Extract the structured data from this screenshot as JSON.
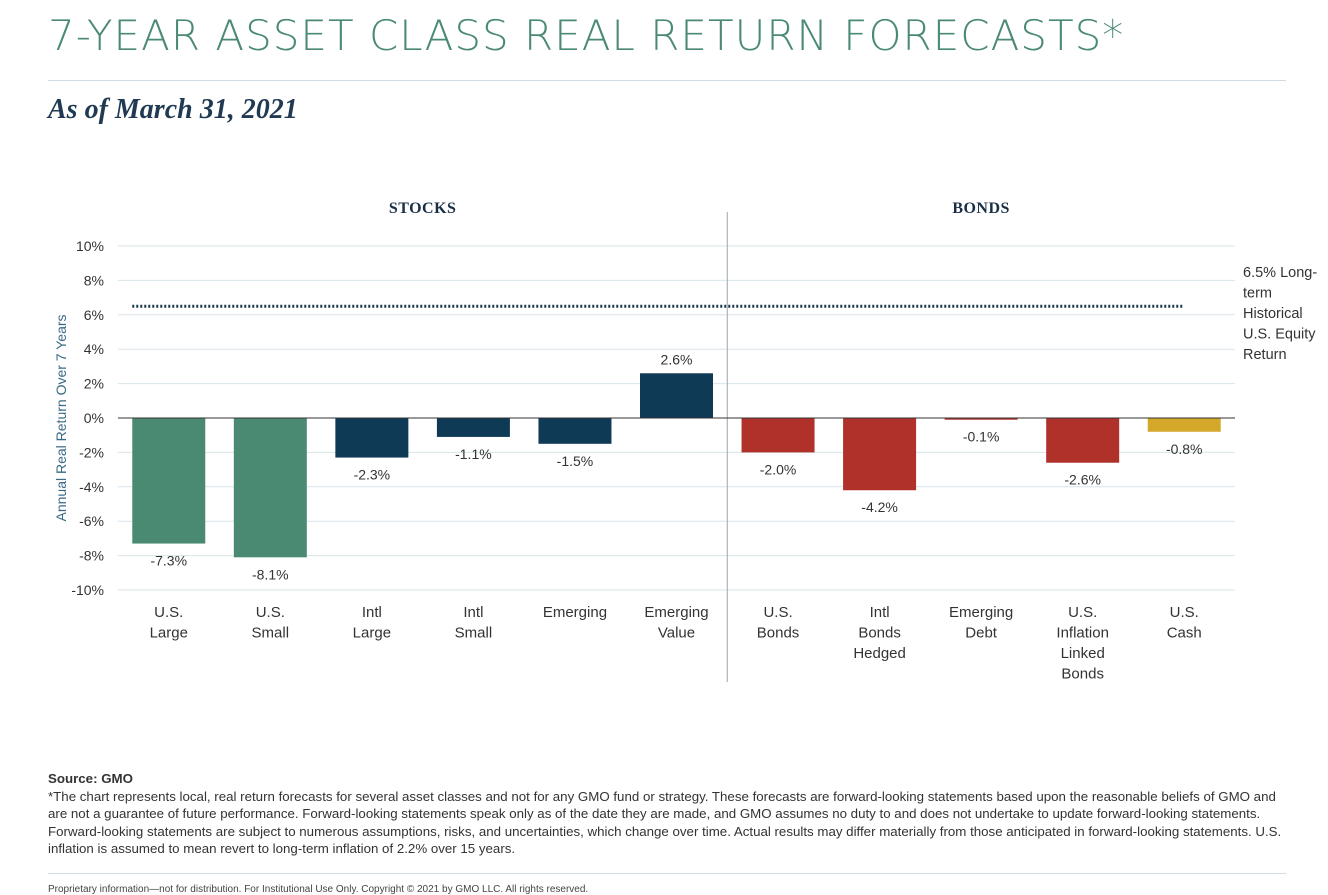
{
  "title": "7-YEAR ASSET CLASS REAL RETURN FORECASTS*",
  "subtitle": "As of March 31, 2021",
  "chart_data": {
    "type": "bar",
    "ylabel": "Annual Real Return Over 7 Years",
    "ylim": [
      -10,
      10
    ],
    "yticks": [
      10,
      8,
      6,
      4,
      2,
      0,
      -2,
      -4,
      -6,
      -8,
      -10
    ],
    "ytick_labels": [
      "10%",
      "8%",
      "6%",
      "4%",
      "2%",
      "0%",
      "-2%",
      "-4%",
      "-6%",
      "-8%",
      "-10%"
    ],
    "grid": true,
    "groups": [
      {
        "label": "STOCKS",
        "start": 0,
        "end": 5
      },
      {
        "label": "BONDS",
        "start": 6,
        "end": 10
      }
    ],
    "categories": [
      [
        "U.S.",
        "Large"
      ],
      [
        "U.S.",
        "Small"
      ],
      [
        "Intl",
        "Large"
      ],
      [
        "Intl",
        "Small"
      ],
      [
        "Emerging"
      ],
      [
        "Emerging",
        "Value"
      ],
      [
        "U.S.",
        "Bonds"
      ],
      [
        "Intl",
        "Bonds",
        "Hedged"
      ],
      [
        "Emerging",
        "Debt"
      ],
      [
        "U.S.",
        "Inflation",
        "Linked",
        "Bonds"
      ],
      [
        "U.S.",
        "Cash"
      ]
    ],
    "values": [
      -7.3,
      -8.1,
      -2.3,
      -1.1,
      -1.5,
      2.6,
      -2.0,
      -4.2,
      -0.1,
      -2.6,
      -0.8
    ],
    "value_labels": [
      "-7.3%",
      "-8.1%",
      "-2.3%",
      "-1.1%",
      "-1.5%",
      "2.6%",
      "-2.0%",
      "-4.2%",
      "-0.1%",
      "-2.6%",
      "-0.8%"
    ],
    "bar_colors": [
      "#4a8a72",
      "#4a8a72",
      "#0e3a56",
      "#0e3a56",
      "#0e3a56",
      "#0e3a56",
      "#b0302a",
      "#b0302a",
      "#b0302a",
      "#b0302a",
      "#d4a828"
    ],
    "reference_line": {
      "value": 6.5,
      "label": [
        "6.5% Long-",
        "term",
        "Historical",
        "U.S. Equity",
        "Return"
      ],
      "color": "#1a3a4a",
      "style": "dotted"
    }
  },
  "notes": {
    "source": "Source: GMO",
    "disclaimer": "*The chart represents local, real return forecasts for several asset classes and not for any GMO fund or strategy. These forecasts are forward-looking statements based upon the reasonable beliefs of GMO and are not a guarantee of future performance. Forward-looking statements speak only as of the date they are made, and GMO assumes no duty to and does not undertake to update forward-looking statements. Forward-looking statements are subject to numerous assumptions, risks, and uncertainties, which change over time. Actual results may differ materially from those anticipated in forward-looking statements. U.S. inflation is assumed to mean revert to long-term inflation of 2.2% over 15 years."
  },
  "footer": "Proprietary information—not for distribution. For Institutional Use Only. Copyright © 2021 by GMO LLC. All rights reserved."
}
